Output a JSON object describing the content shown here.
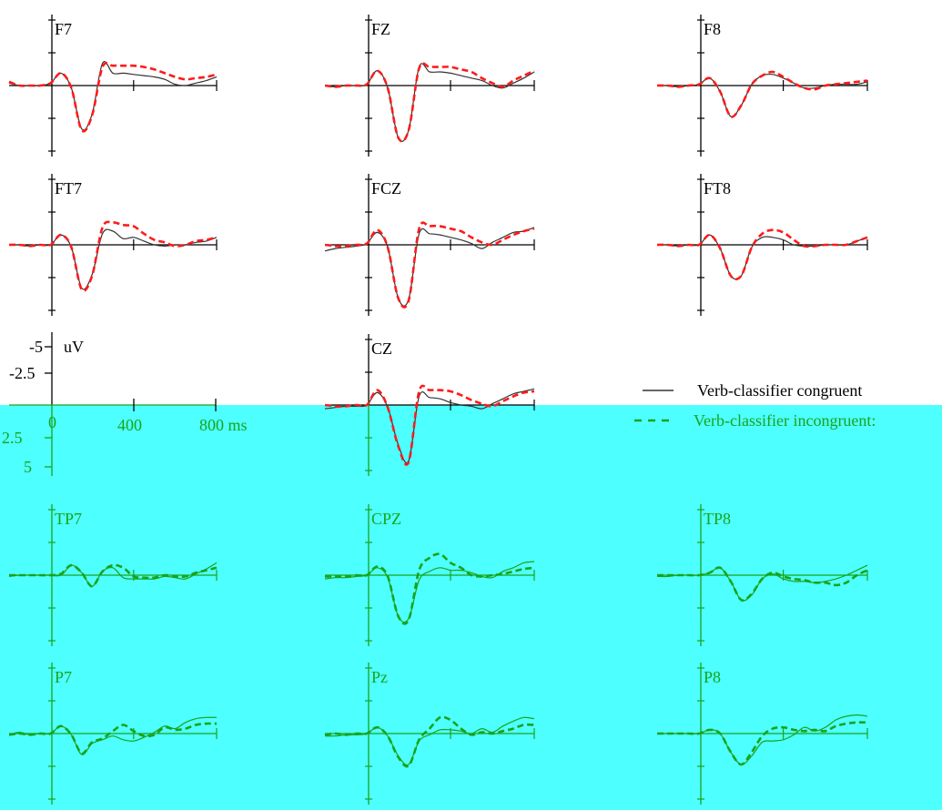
{
  "colors": {
    "background": "#ffffff",
    "overlay": "#4dffff",
    "axis_top": "#000000",
    "axis_bottom": "#1aa31a",
    "congruent_top": "#333333",
    "incongruent_top": "#ff1a1a",
    "congruent_bottom": "#1aa31a",
    "incongruent_bottom": "#1aa31a"
  },
  "scale": {
    "y_label_top": "-5",
    "y_label_mid_upper": "-2.5",
    "y_label_mid_lower": "2.5",
    "y_label_bottom": "5",
    "y_unit": "uV",
    "x_label_0": "0",
    "x_label_400": "400",
    "x_label_800": "800 ms"
  },
  "legend": {
    "congruent": "Verb-classifier congruent",
    "incongruent": "Verb-classifier incongruent:"
  },
  "chart_data": {
    "type": "line",
    "title": "",
    "xlabel": "ms",
    "ylabel": "uV",
    "x": [
      -200,
      -150,
      -100,
      -50,
      0,
      50,
      100,
      150,
      200,
      250,
      300,
      350,
      400,
      450,
      500,
      550,
      600,
      650,
      700,
      750,
      800
    ],
    "xlim": [
      -200,
      800
    ],
    "ylim": [
      5,
      -5
    ],
    "y_inverted": true,
    "xticks": [
      0,
      400,
      800
    ],
    "yticks": [
      -5,
      -2.5,
      0,
      2.5,
      5
    ],
    "legend_position": "right",
    "series_names": [
      "Verb-classifier congruent",
      "Verb-classifier incongruent:"
    ],
    "electrodes": [
      {
        "name": "F7",
        "congruent": [
          -0.2,
          0,
          0,
          0,
          -0.2,
          -1,
          0.2,
          3.5,
          2.3,
          -1.8,
          -1,
          -1,
          -0.9,
          -0.8,
          -0.7,
          -0.5,
          -0.1,
          0,
          -0.2,
          -0.4,
          -0.7
        ],
        "incongruent": [
          -0.3,
          0,
          0,
          0,
          -0.2,
          -1,
          0.2,
          3.6,
          2.4,
          -1.5,
          -1.6,
          -1.6,
          -1.6,
          -1.5,
          -1.3,
          -1,
          -0.7,
          -0.5,
          -0.6,
          -0.7,
          -0.9
        ]
      },
      {
        "name": "FZ",
        "congruent": [
          0,
          0.1,
          0,
          0,
          -0.1,
          -1.2,
          0.2,
          4.2,
          3.6,
          -1.5,
          -1.1,
          -1.1,
          -1,
          -0.8,
          -0.6,
          -0.4,
          0,
          0.2,
          -0.2,
          -0.6,
          -1.1
        ],
        "incongruent": [
          0,
          0.1,
          0,
          0,
          -0.1,
          -1.2,
          0.2,
          4.2,
          3.6,
          -1.4,
          -1.5,
          -1.5,
          -1.5,
          -1.3,
          -1.1,
          -0.6,
          -0.2,
          0.1,
          -0.4,
          -0.8,
          -1.2
        ]
      },
      {
        "name": "F8",
        "congruent": [
          0,
          0,
          0.1,
          0,
          -0.1,
          -0.6,
          0.5,
          2.5,
          1.6,
          -0.1,
          -0.8,
          -0.9,
          -0.6,
          -0.2,
          0.2,
          0.2,
          0,
          -0.1,
          -0.1,
          -0.1,
          -0.3
        ],
        "incongruent": [
          0,
          0,
          0.1,
          0,
          -0.1,
          -0.6,
          0.5,
          2.5,
          1.6,
          -0.1,
          -0.8,
          -1.1,
          -0.7,
          -0.2,
          0.2,
          0.3,
          0,
          -0.1,
          -0.2,
          -0.3,
          -0.4
        ]
      },
      {
        "name": "FT7",
        "congruent": [
          0,
          0,
          0.1,
          0,
          0,
          -0.8,
          0.2,
          3.5,
          2.4,
          -0.9,
          -1.1,
          -0.5,
          -0.6,
          -0.3,
          0,
          0.1,
          0,
          0,
          -0.2,
          -0.3,
          -0.6
        ],
        "incongruent": [
          0,
          0,
          0.1,
          0,
          0,
          -0.8,
          0.2,
          3.6,
          2.5,
          -1.4,
          -1.8,
          -1.6,
          -1.5,
          -0.9,
          -0.4,
          -0.2,
          0.1,
          0,
          -0.3,
          -0.4,
          -0.6
        ]
      },
      {
        "name": "FCZ",
        "congruent": [
          0.5,
          0.3,
          0.2,
          0.1,
          -0.1,
          -1,
          0.2,
          4.3,
          4.4,
          -0.9,
          -0.9,
          -0.8,
          -0.6,
          -0.4,
          -0.1,
          0.3,
          -0.2,
          -0.6,
          -1,
          -1.1,
          -1.4
        ],
        "incongruent": [
          0,
          0.1,
          0.1,
          0,
          -0.1,
          -1.2,
          0.2,
          4.3,
          4.5,
          -1.3,
          -1.5,
          -1.5,
          -1.3,
          -1.1,
          -0.6,
          -0.2,
          0,
          -0.4,
          -0.8,
          -1.1,
          -1.3
        ]
      },
      {
        "name": "FT8",
        "congruent": [
          0,
          0,
          0.1,
          0,
          0,
          -0.8,
          0.3,
          2.5,
          2.5,
          0.2,
          -0.6,
          -0.6,
          -0.4,
          0,
          0.1,
          0.1,
          0,
          0,
          0,
          -0.3,
          -0.6
        ],
        "incongruent": [
          0,
          0,
          0.1,
          0,
          0,
          -0.8,
          0.3,
          2.5,
          2.5,
          0.2,
          -0.9,
          -1.2,
          -1,
          -0.4,
          0.1,
          0.1,
          0,
          0,
          0,
          -0.3,
          -0.6
        ]
      },
      {
        "name": "CZ",
        "congruent": [
          0.3,
          0.2,
          0.1,
          0.1,
          0,
          -1,
          0.2,
          3.2,
          4.5,
          -0.7,
          -0.6,
          -0.5,
          -0.2,
          0,
          0.1,
          0.3,
          -0.1,
          -0.5,
          -0.9,
          -1.1,
          -1.3
        ],
        "incongruent": [
          0,
          0.1,
          0.1,
          0,
          0,
          -1.2,
          0.2,
          3.3,
          4.6,
          -1.1,
          -1.2,
          -1.2,
          -1.1,
          -0.8,
          -0.4,
          -0.1,
          0.1,
          -0.3,
          -0.7,
          -1,
          -1.1
        ]
      },
      {
        "name": "TP7",
        "congruent": [
          0.1,
          0,
          0,
          0,
          0,
          0,
          -0.8,
          -0.2,
          0.9,
          -0.3,
          -0.6,
          0.2,
          0.3,
          0.3,
          0.3,
          0.1,
          0.2,
          0.3,
          -0.1,
          -0.5,
          -1
        ],
        "incongruent": [
          0,
          0,
          0,
          0,
          0,
          -0.1,
          -0.8,
          -0.2,
          0.9,
          -0.3,
          -0.8,
          -0.6,
          0.1,
          0.2,
          0.2,
          0,
          0.1,
          0.1,
          -0.2,
          -0.4,
          -0.6
        ]
      },
      {
        "name": "CPZ",
        "congruent": [
          0.3,
          0.2,
          0.2,
          0.1,
          0,
          -0.6,
          0.2,
          3.3,
          3.5,
          0.4,
          -0.3,
          -0.6,
          -0.4,
          -0.4,
          -0.2,
          0.1,
          0.2,
          -0.3,
          -0.6,
          -1,
          -1.1
        ],
        "incongruent": [
          0.1,
          0.1,
          0.1,
          0,
          0,
          -0.7,
          0.1,
          3.3,
          3.6,
          -0.4,
          -1.4,
          -1.7,
          -1,
          -0.6,
          0,
          0.1,
          0,
          -0.1,
          -0.3,
          -0.5,
          -0.6
        ]
      },
      {
        "name": "TP8",
        "congruent": [
          0.1,
          0.1,
          0,
          0,
          0,
          -0.2,
          -0.6,
          0.5,
          2,
          1.6,
          0.3,
          -0.1,
          0.3,
          0.5,
          0.5,
          0.6,
          0.5,
          0.3,
          0,
          -0.4,
          -0.8
        ],
        "incongruent": [
          0,
          0,
          0,
          0,
          0,
          -0.2,
          -0.6,
          0.5,
          2,
          1.5,
          0.3,
          -0.2,
          0.1,
          0.3,
          0.4,
          0.6,
          0.6,
          0.8,
          0.6,
          0,
          -0.4
        ]
      },
      {
        "name": "P7",
        "congruent": [
          0.1,
          -0.1,
          0.1,
          0,
          0,
          -0.6,
          0.1,
          1.7,
          0.8,
          0.5,
          0.2,
          0.5,
          0.6,
          0.3,
          -0.1,
          -0.6,
          -0.4,
          -0.9,
          -1.2,
          -1.3,
          -1.3
        ],
        "incongruent": [
          0.1,
          0,
          0.1,
          0,
          0,
          -0.6,
          0.1,
          1.6,
          0.7,
          0.4,
          -0.2,
          -0.7,
          -0.2,
          0.2,
          0.1,
          -0.5,
          -0.3,
          -0.4,
          -0.7,
          -0.8,
          -0.8
        ]
      },
      {
        "name": "Pz",
        "congruent": [
          0.2,
          0.2,
          0.1,
          0.1,
          0,
          -0.5,
          0.2,
          1.8,
          2.5,
          0.6,
          0.1,
          -0.3,
          -0.3,
          -0.2,
          0,
          -0.4,
          -0.1,
          -0.6,
          -1,
          -1.3,
          -1.2
        ],
        "incongruent": [
          0.1,
          0,
          0.1,
          0,
          0,
          -0.5,
          0.2,
          1.9,
          2.6,
          0.5,
          -0.4,
          -1.3,
          -1.1,
          -0.4,
          0.1,
          -0.1,
          0,
          -0.2,
          -0.4,
          -0.7,
          -0.7
        ]
      },
      {
        "name": "P8",
        "congruent": [
          0,
          0,
          0,
          0,
          0,
          -0.3,
          0,
          1.5,
          2.5,
          1.8,
          0.7,
          0.6,
          0.5,
          0.1,
          -0.5,
          -0.2,
          -0.5,
          -1.1,
          -1.4,
          -1.5,
          -1.4
        ],
        "incongruent": [
          0,
          0,
          0,
          0,
          0,
          -0.3,
          0,
          1.5,
          2.5,
          1.5,
          0.2,
          -0.4,
          -0.5,
          -0.3,
          -0.2,
          -0.3,
          -0.2,
          -0.6,
          -0.8,
          -0.9,
          -0.9
        ]
      }
    ]
  }
}
